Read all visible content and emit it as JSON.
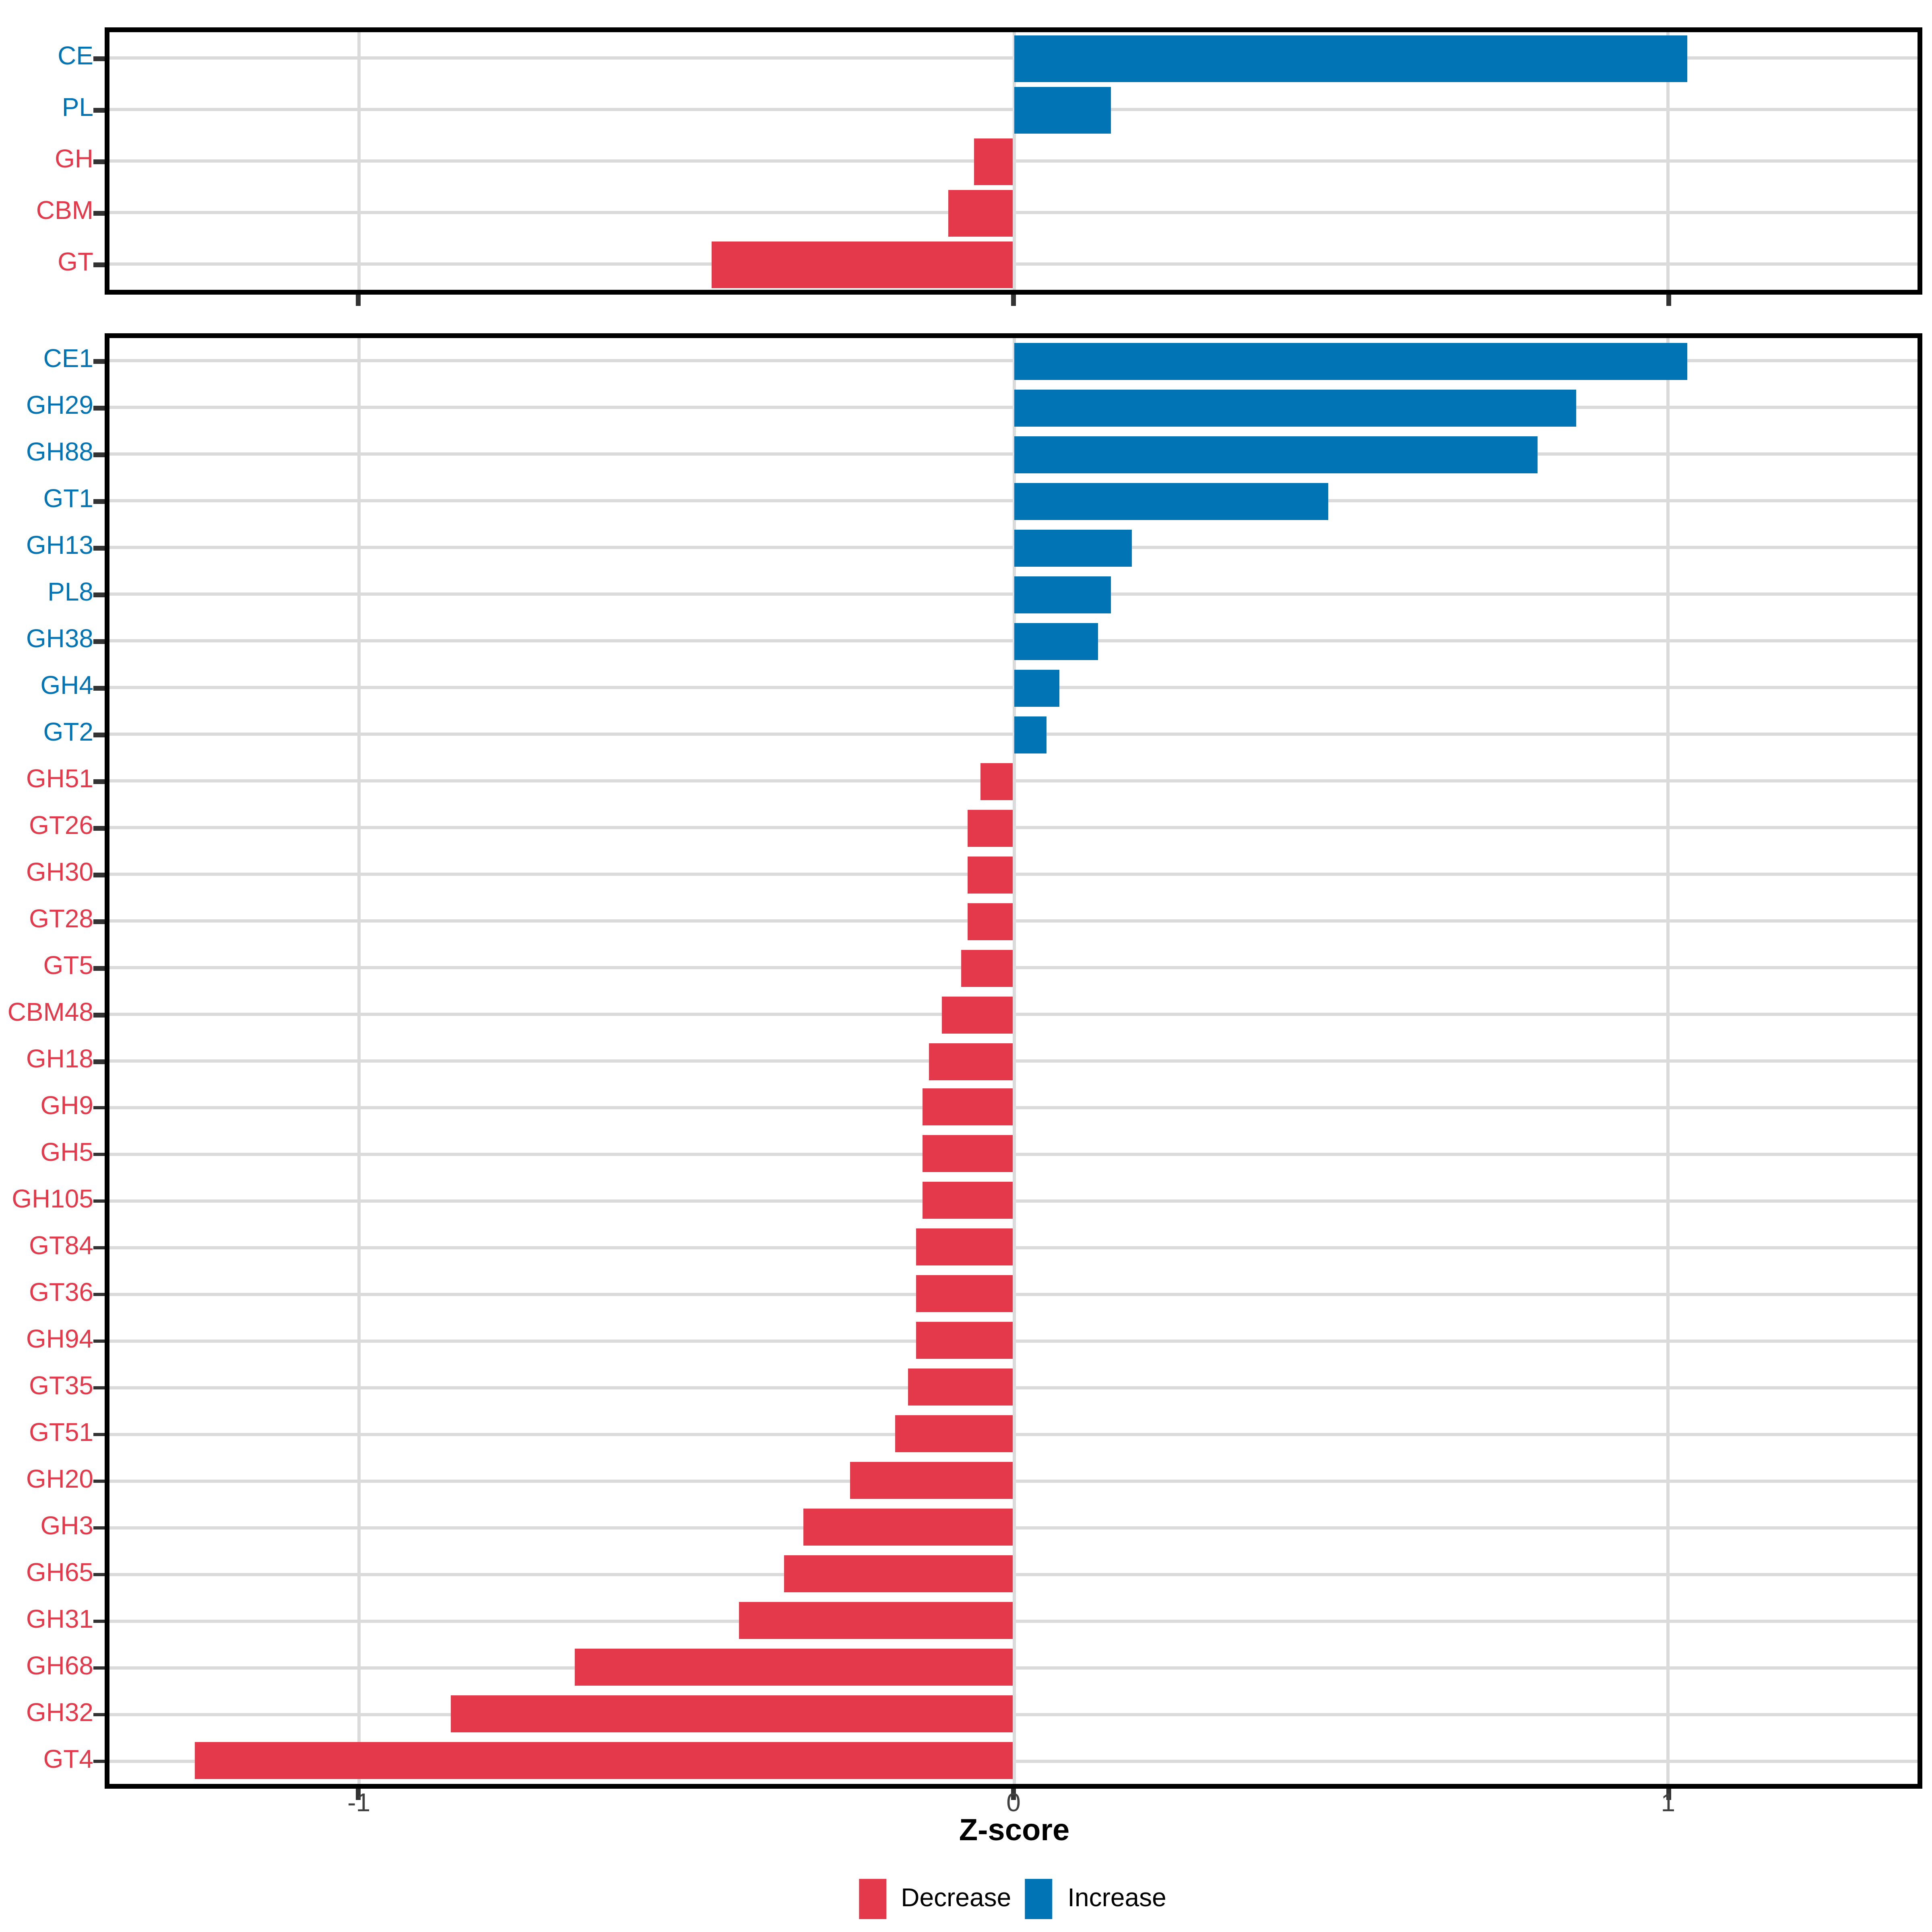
{
  "axis": {
    "label": "Z-score",
    "ticks": [
      -1,
      0,
      1
    ],
    "tick_labels": [
      "-1",
      "0",
      "1"
    ],
    "xlim": [
      -1.381,
      1.381
    ]
  },
  "legend": {
    "items": [
      {
        "label": "Decrease",
        "color": "#E4394A"
      },
      {
        "label": "Increase",
        "color": "#0074B4"
      }
    ]
  },
  "colors": {
    "increase": "#0074B4",
    "decrease": "#E4394A",
    "gridline": "#dbdbdb",
    "axis_text": "#404040",
    "panel_border": "#000000",
    "background": "#ffffff"
  },
  "chart_data": [
    {
      "type": "bar",
      "orientation": "horizontal",
      "panel": "top",
      "title": "",
      "xlabel": "Z-score",
      "ylabel": "",
      "xlim": [
        -1.381,
        1.381
      ],
      "xticks": [
        -1,
        0,
        1
      ],
      "grid": "on",
      "legend_position": "bottom",
      "categories": [
        "CE",
        "PL",
        "GH",
        "CBM",
        "GT"
      ],
      "values": [
        1.03,
        0.15,
        -0.06,
        -0.1,
        -0.46
      ]
    },
    {
      "type": "bar",
      "orientation": "horizontal",
      "panel": "bottom",
      "title": "",
      "xlabel": "Z-score",
      "ylabel": "",
      "xlim": [
        -1.381,
        1.381
      ],
      "xticks": [
        -1,
        0,
        1
      ],
      "grid": "on",
      "legend_position": "bottom",
      "categories": [
        "CE1",
        "GH29",
        "GH88",
        "GT1",
        "GH13",
        "PL8",
        "GH38",
        "GH4",
        "GT2",
        "GH51",
        "GT26",
        "GH30",
        "GT28",
        "GT5",
        "CBM48",
        "GH18",
        "GH9",
        "GH5",
        "GH105",
        "GT84",
        "GT36",
        "GH94",
        "GT35",
        "GT51",
        "GH20",
        "GH3",
        "GH65",
        "GH31",
        "GH68",
        "GH32",
        "GT4"
      ],
      "values": [
        1.03,
        0.86,
        0.8,
        0.48,
        0.18,
        0.15,
        0.13,
        0.07,
        0.05,
        -0.05,
        -0.07,
        -0.07,
        -0.07,
        -0.08,
        -0.11,
        -0.13,
        -0.14,
        -0.14,
        -0.14,
        -0.15,
        -0.15,
        -0.15,
        -0.16,
        -0.18,
        -0.25,
        -0.32,
        -0.35,
        -0.42,
        -0.67,
        -0.86,
        -1.25
      ]
    }
  ]
}
